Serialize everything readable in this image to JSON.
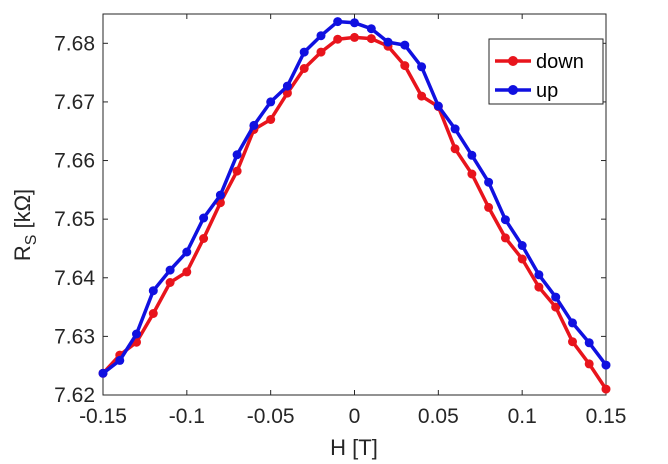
{
  "chart_data": {
    "type": "line",
    "title": "",
    "xlabel": "H [T]",
    "ylabel_main": "R",
    "ylabel_sub": "S",
    "ylabel_unit": " [kΩ]",
    "xlim": [
      -0.15,
      0.15
    ],
    "ylim": [
      7.62,
      7.685
    ],
    "xticks": [
      -0.15,
      -0.1,
      -0.05,
      0,
      0.05,
      0.1,
      0.15
    ],
    "xtick_labels": [
      "-0.15",
      "-0.1",
      "-0.05",
      "0",
      "0.05",
      "0.1",
      "0.15"
    ],
    "yticks": [
      7.62,
      7.63,
      7.64,
      7.65,
      7.66,
      7.67,
      7.68
    ],
    "ytick_labels": [
      "7.62",
      "7.63",
      "7.64",
      "7.65",
      "7.66",
      "7.67",
      "7.68"
    ],
    "grid": false,
    "legend_position": "top-right",
    "series": [
      {
        "name": "down",
        "color": "#e8141c",
        "x": [
          -0.15,
          -0.14,
          -0.13,
          -0.12,
          -0.11,
          -0.1,
          -0.09,
          -0.08,
          -0.07,
          -0.06,
          -0.05,
          -0.04,
          -0.03,
          -0.02,
          -0.01,
          0,
          0.01,
          0.02,
          0.03,
          0.04,
          0.05,
          0.06,
          0.07,
          0.08,
          0.09,
          0.1,
          0.11,
          0.12,
          0.13,
          0.14,
          0.15
        ],
        "y": [
          7.6237,
          7.6268,
          7.629,
          7.6339,
          7.6392,
          7.641,
          7.6467,
          7.6528,
          7.6582,
          7.6653,
          7.667,
          7.6715,
          7.6757,
          7.6785,
          7.6807,
          7.681,
          7.6808,
          7.6795,
          7.6762,
          7.671,
          7.6692,
          7.662,
          7.6577,
          7.652,
          7.6468,
          7.6432,
          7.6384,
          7.635,
          7.6291,
          7.6253,
          7.621
        ]
      },
      {
        "name": "up",
        "color": "#1010e0",
        "x": [
          -0.15,
          -0.14,
          -0.13,
          -0.12,
          -0.11,
          -0.1,
          -0.09,
          -0.08,
          -0.07,
          -0.06,
          -0.05,
          -0.04,
          -0.03,
          -0.02,
          -0.01,
          0,
          0.01,
          0.02,
          0.03,
          0.04,
          0.05,
          0.06,
          0.07,
          0.08,
          0.09,
          0.1,
          0.11,
          0.12,
          0.13,
          0.14,
          0.15
        ],
        "y": [
          7.6237,
          7.6259,
          7.6304,
          7.6378,
          7.6413,
          7.6444,
          7.6502,
          7.6541,
          7.661,
          7.666,
          7.67,
          7.6727,
          7.6785,
          7.6813,
          7.6837,
          7.6835,
          7.6825,
          7.6802,
          7.6797,
          7.676,
          7.6693,
          7.6654,
          7.6609,
          7.6563,
          7.6499,
          7.6455,
          7.6405,
          7.6367,
          7.6323,
          7.6289,
          7.6251
        ]
      }
    ]
  }
}
